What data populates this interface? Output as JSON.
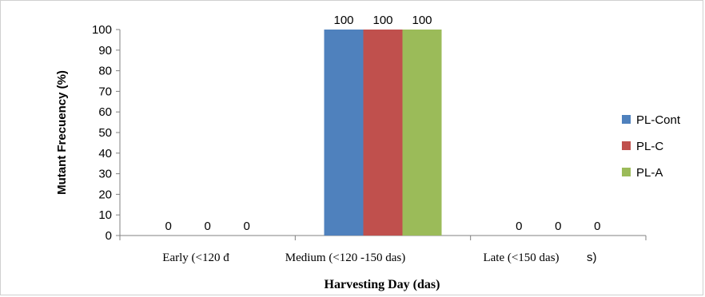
{
  "chart_data": {
    "type": "bar",
    "ylabel": "Mutant Frecuency (%)",
    "xlabel": "Harvesting Day (das)",
    "categories": [
      "Early (<120 das)",
      "Medium (<120 -150 das)",
      "Late (<150 das)"
    ],
    "category_display": [
      "Early (<120 đ",
      "Medium (<120 -150 das)",
      "Late (<150 das)"
    ],
    "stray_text": "s)",
    "series": [
      {
        "name": "PL-Cont",
        "color": "#4f81bd",
        "values": [
          0,
          100,
          0
        ]
      },
      {
        "name": "PL-C",
        "color": "#c0504d",
        "values": [
          0,
          100,
          0
        ]
      },
      {
        "name": "PL-A",
        "color": "#9bbb59",
        "values": [
          0,
          100,
          0
        ]
      }
    ],
    "ylim": [
      0,
      100
    ],
    "yticks": [
      0,
      10,
      20,
      30,
      40,
      50,
      60,
      70,
      80,
      90,
      100
    ],
    "data_labels": true,
    "legend_position": "right",
    "grid": false
  }
}
